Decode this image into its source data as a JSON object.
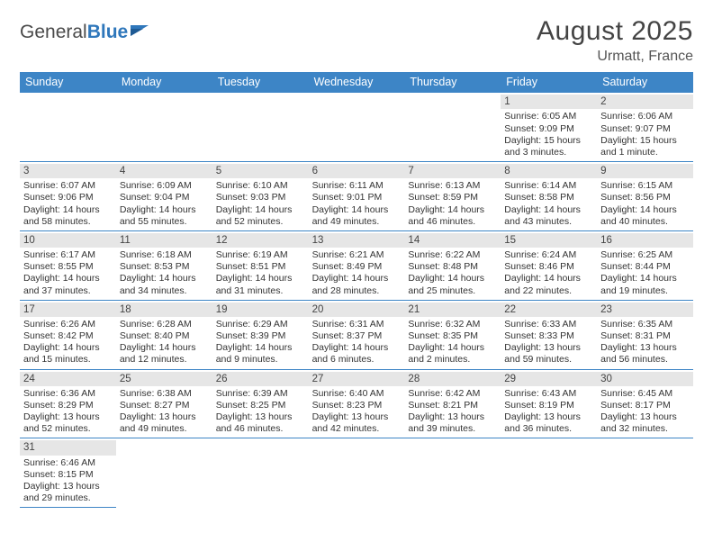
{
  "brand": {
    "part1": "General",
    "part2": "Blue"
  },
  "title": "August 2025",
  "location": "Urmatt, France",
  "colors": {
    "header_bg": "#3d85c6",
    "header_text": "#ffffff",
    "daynum_bg": "#e6e6e6",
    "cell_border": "#3d85c6",
    "body_text": "#333333",
    "title_text": "#444444",
    "brand_gray": "#4a4a4a",
    "brand_blue": "#2f77bb"
  },
  "weekdays": [
    "Sunday",
    "Monday",
    "Tuesday",
    "Wednesday",
    "Thursday",
    "Friday",
    "Saturday"
  ],
  "labels": {
    "sunrise": "Sunrise:",
    "sunset": "Sunset:",
    "daylight": "Daylight:"
  },
  "first_weekday_index": 5,
  "days": [
    {
      "n": "1",
      "sunrise": "6:05 AM",
      "sunset": "9:09 PM",
      "daylight": "15 hours and 3 minutes."
    },
    {
      "n": "2",
      "sunrise": "6:06 AM",
      "sunset": "9:07 PM",
      "daylight": "15 hours and 1 minute."
    },
    {
      "n": "3",
      "sunrise": "6:07 AM",
      "sunset": "9:06 PM",
      "daylight": "14 hours and 58 minutes."
    },
    {
      "n": "4",
      "sunrise": "6:09 AM",
      "sunset": "9:04 PM",
      "daylight": "14 hours and 55 minutes."
    },
    {
      "n": "5",
      "sunrise": "6:10 AM",
      "sunset": "9:03 PM",
      "daylight": "14 hours and 52 minutes."
    },
    {
      "n": "6",
      "sunrise": "6:11 AM",
      "sunset": "9:01 PM",
      "daylight": "14 hours and 49 minutes."
    },
    {
      "n": "7",
      "sunrise": "6:13 AM",
      "sunset": "8:59 PM",
      "daylight": "14 hours and 46 minutes."
    },
    {
      "n": "8",
      "sunrise": "6:14 AM",
      "sunset": "8:58 PM",
      "daylight": "14 hours and 43 minutes."
    },
    {
      "n": "9",
      "sunrise": "6:15 AM",
      "sunset": "8:56 PM",
      "daylight": "14 hours and 40 minutes."
    },
    {
      "n": "10",
      "sunrise": "6:17 AM",
      "sunset": "8:55 PM",
      "daylight": "14 hours and 37 minutes."
    },
    {
      "n": "11",
      "sunrise": "6:18 AM",
      "sunset": "8:53 PM",
      "daylight": "14 hours and 34 minutes."
    },
    {
      "n": "12",
      "sunrise": "6:19 AM",
      "sunset": "8:51 PM",
      "daylight": "14 hours and 31 minutes."
    },
    {
      "n": "13",
      "sunrise": "6:21 AM",
      "sunset": "8:49 PM",
      "daylight": "14 hours and 28 minutes."
    },
    {
      "n": "14",
      "sunrise": "6:22 AM",
      "sunset": "8:48 PM",
      "daylight": "14 hours and 25 minutes."
    },
    {
      "n": "15",
      "sunrise": "6:24 AM",
      "sunset": "8:46 PM",
      "daylight": "14 hours and 22 minutes."
    },
    {
      "n": "16",
      "sunrise": "6:25 AM",
      "sunset": "8:44 PM",
      "daylight": "14 hours and 19 minutes."
    },
    {
      "n": "17",
      "sunrise": "6:26 AM",
      "sunset": "8:42 PM",
      "daylight": "14 hours and 15 minutes."
    },
    {
      "n": "18",
      "sunrise": "6:28 AM",
      "sunset": "8:40 PM",
      "daylight": "14 hours and 12 minutes."
    },
    {
      "n": "19",
      "sunrise": "6:29 AM",
      "sunset": "8:39 PM",
      "daylight": "14 hours and 9 minutes."
    },
    {
      "n": "20",
      "sunrise": "6:31 AM",
      "sunset": "8:37 PM",
      "daylight": "14 hours and 6 minutes."
    },
    {
      "n": "21",
      "sunrise": "6:32 AM",
      "sunset": "8:35 PM",
      "daylight": "14 hours and 2 minutes."
    },
    {
      "n": "22",
      "sunrise": "6:33 AM",
      "sunset": "8:33 PM",
      "daylight": "13 hours and 59 minutes."
    },
    {
      "n": "23",
      "sunrise": "6:35 AM",
      "sunset": "8:31 PM",
      "daylight": "13 hours and 56 minutes."
    },
    {
      "n": "24",
      "sunrise": "6:36 AM",
      "sunset": "8:29 PM",
      "daylight": "13 hours and 52 minutes."
    },
    {
      "n": "25",
      "sunrise": "6:38 AM",
      "sunset": "8:27 PM",
      "daylight": "13 hours and 49 minutes."
    },
    {
      "n": "26",
      "sunrise": "6:39 AM",
      "sunset": "8:25 PM",
      "daylight": "13 hours and 46 minutes."
    },
    {
      "n": "27",
      "sunrise": "6:40 AM",
      "sunset": "8:23 PM",
      "daylight": "13 hours and 42 minutes."
    },
    {
      "n": "28",
      "sunrise": "6:42 AM",
      "sunset": "8:21 PM",
      "daylight": "13 hours and 39 minutes."
    },
    {
      "n": "29",
      "sunrise": "6:43 AM",
      "sunset": "8:19 PM",
      "daylight": "13 hours and 36 minutes."
    },
    {
      "n": "30",
      "sunrise": "6:45 AM",
      "sunset": "8:17 PM",
      "daylight": "13 hours and 32 minutes."
    },
    {
      "n": "31",
      "sunrise": "6:46 AM",
      "sunset": "8:15 PM",
      "daylight": "13 hours and 29 minutes."
    }
  ]
}
